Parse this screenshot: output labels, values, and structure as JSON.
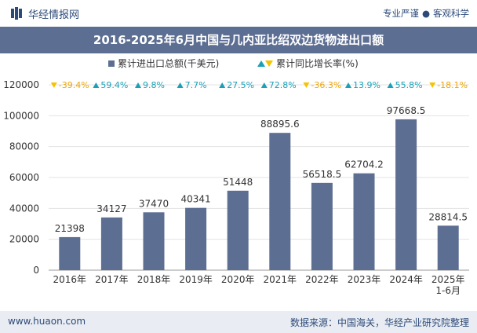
{
  "header": {
    "brand": "华经情报网",
    "tag1": "专业严谨",
    "separator": "●",
    "tag2": "客观科学"
  },
  "title": "2016-2025年6月中国与几内亚比绍双边货物进出口额",
  "legend": {
    "bar_label": "累计进出口总额(千美元)",
    "growth_label": "累计同比增长率(%)"
  },
  "colors": {
    "bar": "#5d6e93",
    "title_bg": "#5d6e93",
    "up": "#1aa0b8",
    "down": "#f5c400",
    "up_text": "#1aa0b8",
    "down_text": "#f0a500"
  },
  "chart_data": {
    "type": "bar",
    "categories": [
      "2016年",
      "2017年",
      "2018年",
      "2019年",
      "2020年",
      "2021年",
      "2022年",
      "2023年",
      "2024年",
      "2025年\n1-6月"
    ],
    "series": [
      {
        "name": "累计进出口总额(千美元)",
        "values": [
          21398,
          34127,
          37470,
          40341,
          51448,
          88895.6,
          56518.5,
          62704.2,
          97668.5,
          28814.5
        ],
        "labels": [
          "21398",
          "34127",
          "37470",
          "40341",
          "51448",
          "88895.6",
          "56518.5",
          "62704.2",
          "97668.5",
          "28814.5"
        ]
      },
      {
        "name": "累计同比增长率(%)",
        "values": [
          -39.4,
          59.4,
          9.8,
          7.7,
          27.5,
          72.8,
          -36.3,
          13.9,
          55.8,
          -18.1
        ],
        "labels": [
          "-39.4%",
          "59.4%",
          "9.8%",
          "7.7%",
          "27.5%",
          "72.8%",
          "-36.3%",
          "13.9%",
          "55.8%",
          "-18.1%"
        ]
      }
    ],
    "ylim": [
      0,
      120000
    ],
    "yticks": [
      "0",
      "20000",
      "40000",
      "60000",
      "80000",
      "100000",
      "120000"
    ],
    "grid": true
  },
  "footer": {
    "website": "www.huaon.com",
    "source": "数据来源：中国海关，华经产业研究院整理"
  }
}
